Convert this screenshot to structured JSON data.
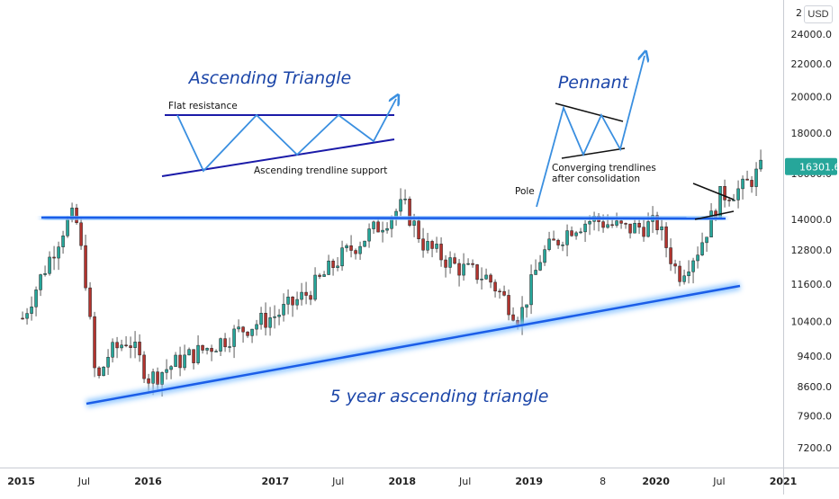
{
  "chart_data": {
    "type": "candlestick",
    "symbol_hint": "BTCUSD weekly-style candles",
    "currency_button": "USD",
    "top_price_partial": "2",
    "y_scale": "log",
    "ylim": [
      6800,
      26500
    ],
    "x_range": [
      "2014-11",
      "2021-01"
    ],
    "last_price": "16301.6",
    "last_price_color": "#26a69a",
    "colors": {
      "up_candle": "#26a69a",
      "down_candle": "#b2332e",
      "trendline": "#1b5de8",
      "trend_glow": "#a8d4ff",
      "annotation_text": "#1b45a8",
      "diagram_blue": "#3a8fe0",
      "diagram_navy": "#1a1aa8"
    },
    "y_ticks": [
      "24000.0",
      "22000.0",
      "20000.0",
      "18000.0",
      "16000.0",
      "14000.0",
      "12800.0",
      "11600.0",
      "10400.0",
      "9400.0",
      "8600.0",
      "7900.0",
      "7200.0"
    ],
    "x_ticks": [
      "2015",
      "Jul",
      "2016",
      "2017",
      "Jul",
      "2018",
      "Jul",
      "2019",
      "8",
      "2020",
      "Jul",
      "2021"
    ],
    "approx_series": {
      "dates": [
        "2015-01",
        "2015-03",
        "2015-05",
        "2015-06",
        "2015-07",
        "2015-08",
        "2015-09",
        "2015-11",
        "2016-01",
        "2016-04",
        "2016-07",
        "2016-10",
        "2017-01",
        "2017-04",
        "2017-07",
        "2017-10",
        "2018-01",
        "2018-03",
        "2018-06",
        "2018-09",
        "2018-12",
        "2019-02",
        "2019-05",
        "2019-07",
        "2019-10",
        "2020-01",
        "2020-03",
        "2020-05",
        "2020-07",
        "2020-09",
        "2020-11"
      ],
      "close": [
        10500,
        12000,
        13700,
        14200,
        11800,
        8600,
        9400,
        9900,
        8800,
        9300,
        9700,
        10200,
        10600,
        11300,
        12500,
        13500,
        14600,
        13000,
        12200,
        11800,
        10500,
        12600,
        13700,
        14000,
        13600,
        13800,
        11900,
        12900,
        15000,
        15300,
        16301.6
      ]
    },
    "annotations": [
      {
        "text": "Ascending Triangle",
        "role": "diagram-title"
      },
      {
        "text": "Flat resistance",
        "role": "label"
      },
      {
        "text": "Ascending trendline support",
        "role": "label"
      },
      {
        "text": "Pennant",
        "role": "diagram-title"
      },
      {
        "text": "Pole",
        "role": "label"
      },
      {
        "text": "Converging trendlines",
        "role": "label"
      },
      {
        "text": "after consolidation",
        "role": "label"
      },
      {
        "text": "5 year ascending triangle",
        "role": "pattern-title"
      }
    ]
  }
}
